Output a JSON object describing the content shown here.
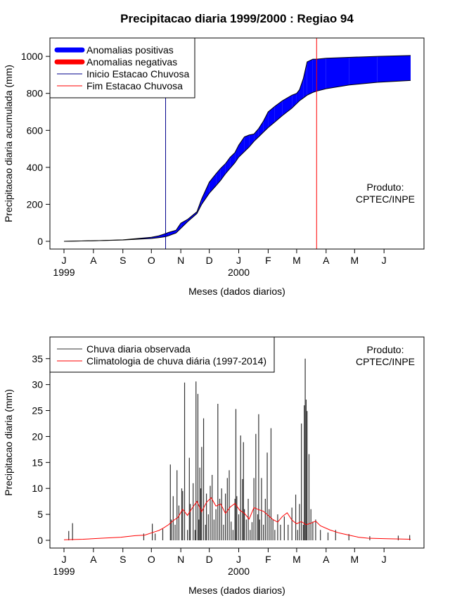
{
  "title": "Precipitacao diaria 1999/2000 : Regiao 94",
  "colors": {
    "positive": "#0000ff",
    "negative": "#ff0000",
    "start_line": "#00008b",
    "end_line": "#ff0000",
    "observed_bars": "#333333",
    "climatology": "#ff0000"
  },
  "chart_data": [
    {
      "type": "area",
      "title": "Precipitacao diaria 1999/2000 : Regiao 94",
      "xlabel": "Meses (dados diarios)",
      "ylabel": "Precipitacao diaria acumulada (mm)",
      "ylim": [
        0,
        1050
      ],
      "yticks": [
        0,
        200,
        400,
        600,
        800,
        1000
      ],
      "month_labels": [
        "J",
        "A",
        "S",
        "O",
        "N",
        "D",
        "J",
        "F",
        "M",
        "A",
        "M",
        "J"
      ],
      "year_labels": [
        {
          "label": "1999",
          "month_index": 0
        },
        {
          "label": "2000",
          "month_index": 6
        }
      ],
      "xlim_days": [
        0,
        365
      ],
      "month_day_index": [
        0,
        31,
        62,
        92,
        123,
        153,
        184,
        215,
        245,
        276,
        306,
        337
      ],
      "legend": [
        "Anomalias positivas",
        "Anomalias negativas",
        "Inicio Estacao Chuvosa",
        "Fim Estacao Chuvosa"
      ],
      "annotation": [
        "Produto:",
        "CPTEC/INPE"
      ],
      "rainy_season_start_day": 107,
      "rainy_season_end_day": 266,
      "observed_cumulative": {
        "day": [
          0,
          31,
          62,
          92,
          100,
          107,
          110,
          118,
          123,
          130,
          140,
          145,
          153,
          160,
          165,
          170,
          175,
          180,
          184,
          190,
          195,
          200,
          205,
          210,
          215,
          222,
          230,
          240,
          245,
          248,
          252,
          256,
          262,
          266,
          276,
          300,
          330,
          365
        ],
        "value": [
          0,
          3,
          8,
          22,
          30,
          42,
          48,
          60,
          98,
          118,
          160,
          230,
          320,
          365,
          395,
          420,
          455,
          480,
          520,
          565,
          575,
          580,
          610,
          650,
          700,
          730,
          760,
          790,
          800,
          820,
          880,
          970,
          985,
          985,
          990,
          995,
          1000,
          1005
        ]
      },
      "climatology_cumulative": {
        "day": [
          0,
          31,
          62,
          92,
          100,
          107,
          110,
          118,
          123,
          130,
          140,
          145,
          153,
          160,
          165,
          170,
          175,
          180,
          184,
          190,
          195,
          200,
          205,
          210,
          215,
          222,
          230,
          240,
          245,
          248,
          252,
          256,
          262,
          266,
          276,
          300,
          330,
          365
        ],
        "value": [
          0,
          3,
          7,
          15,
          20,
          25,
          30,
          45,
          70,
          105,
          150,
          200,
          260,
          300,
          330,
          365,
          395,
          425,
          455,
          485,
          510,
          540,
          565,
          590,
          615,
          645,
          680,
          720,
          745,
          760,
          775,
          790,
          805,
          812,
          825,
          845,
          860,
          870
        ]
      }
    },
    {
      "type": "bar",
      "title": "",
      "xlabel": "Meses (dados diarios)",
      "ylabel": "Precipitacao diaria (mm)",
      "ylim": [
        0,
        37
      ],
      "yticks": [
        0,
        5,
        10,
        15,
        20,
        25,
        30,
        35
      ],
      "month_labels": [
        "J",
        "A",
        "S",
        "O",
        "N",
        "D",
        "J",
        "F",
        "M",
        "A",
        "M",
        "J"
      ],
      "year_labels": [
        {
          "label": "1999",
          "month_index": 0
        },
        {
          "label": "2000",
          "month_index": 6
        }
      ],
      "xlim_days": [
        0,
        365
      ],
      "month_day_index": [
        0,
        31,
        62,
        92,
        123,
        153,
        184,
        215,
        245,
        276,
        306,
        337
      ],
      "legend": [
        "Chuva diaria observada",
        "Climatologia de chuva diária (1997-2014)"
      ],
      "annotation": [
        "Produto:",
        "CPTEC/INPE"
      ],
      "observed_daily": {
        "day": [
          5,
          9,
          84,
          93,
          96,
          104,
          112,
          113,
          115,
          117,
          119,
          121,
          124,
          125,
          127,
          130,
          132,
          133,
          136,
          138,
          139,
          141,
          142,
          143,
          144,
          145,
          147,
          149,
          150,
          152,
          154,
          156,
          158,
          160,
          162,
          164,
          166,
          168,
          170,
          172,
          174,
          176,
          178,
          180,
          181,
          182,
          184,
          186,
          188,
          189,
          190,
          192,
          194,
          196,
          198,
          200,
          202,
          204,
          205,
          206,
          208,
          210,
          212,
          214,
          216,
          218,
          220,
          222,
          225,
          228,
          232,
          236,
          240,
          244,
          246,
          248,
          250,
          252,
          253,
          254,
          255,
          256,
          258,
          260,
          262,
          265,
          270,
          278,
          286,
          300,
          322,
          352,
          364
        ],
        "value": [
          1.8,
          3.3,
          1.3,
          3.2,
          1.3,
          2.2,
          14.6,
          4,
          8.5,
          3,
          13.5,
          6.7,
          10,
          9.5,
          30.4,
          2,
          15.9,
          7,
          11,
          2,
          30.6,
          28.2,
          4,
          14,
          10,
          18,
          23.5,
          3,
          9,
          5,
          10.5,
          12.6,
          4,
          6,
          26.3,
          8,
          10,
          3,
          9,
          12,
          13.5,
          3.6,
          2,
          8,
          25.3,
          8.5,
          5,
          20.2,
          11.8,
          18.9,
          6,
          4,
          8,
          2,
          3.5,
          12,
          20.5,
          5,
          24.3,
          4,
          12,
          3,
          8,
          16.9,
          6,
          21.6,
          4,
          2,
          5,
          3,
          4.6,
          3,
          6.3,
          8.8,
          2,
          7,
          22.5,
          3,
          26,
          35,
          27.1,
          24.9,
          16.6,
          6,
          3.6,
          4,
          2,
          1.5,
          2,
          1.2,
          0.8,
          0.9,
          1
        ]
      },
      "climatology_daily": {
        "day": [
          0,
          20,
          40,
          60,
          75,
          85,
          95,
          100,
          105,
          110,
          115,
          120,
          125,
          130,
          135,
          140,
          145,
          150,
          155,
          160,
          165,
          170,
          175,
          180,
          185,
          190,
          195,
          200,
          205,
          210,
          215,
          220,
          225,
          230,
          235,
          240,
          245,
          250,
          255,
          260,
          265,
          270,
          280,
          290,
          300,
          310,
          320,
          340,
          365
        ],
        "value": [
          0.1,
          0.2,
          0.4,
          0.6,
          0.9,
          1.0,
          1.6,
          1.9,
          2.4,
          3.0,
          3.8,
          4.4,
          6.0,
          4.8,
          6.2,
          7.5,
          5.5,
          7.3,
          8.2,
          6.6,
          7.0,
          5.2,
          6.4,
          7.1,
          5.8,
          5.2,
          4.1,
          6.3,
          5.9,
          5.6,
          4.8,
          4.0,
          3.5,
          4.6,
          5.3,
          3.9,
          3.2,
          3.6,
          3.0,
          3.3,
          3.7,
          2.8,
          2.0,
          1.4,
          1.0,
          0.6,
          0.4,
          0.3,
          0.2
        ]
      }
    }
  ]
}
